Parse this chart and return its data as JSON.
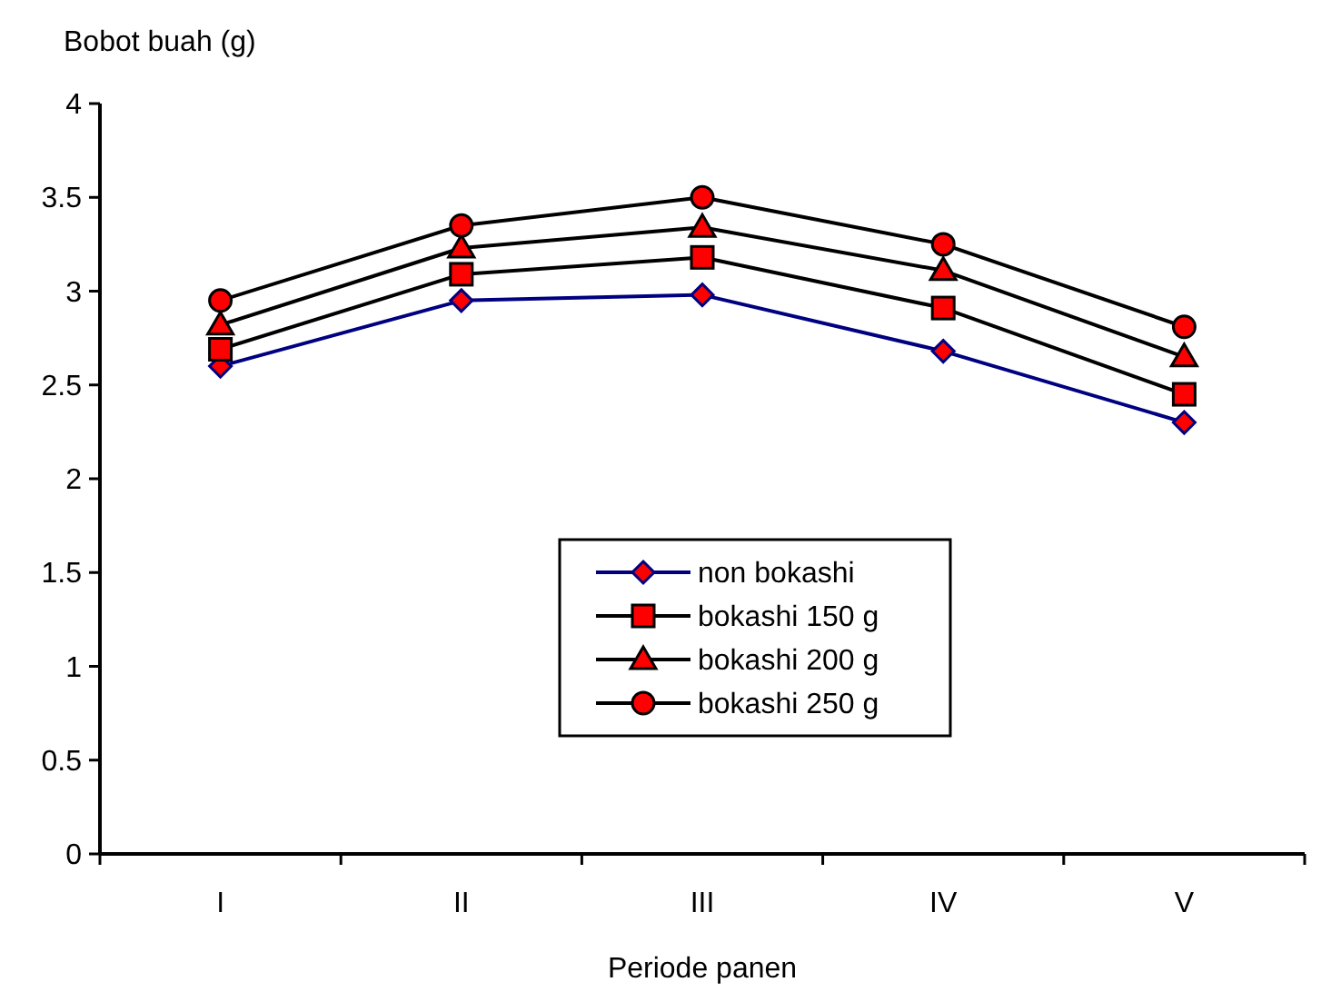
{
  "chart_data": {
    "type": "line",
    "ylabel": "Bobot buah (g)",
    "xlabel": "Periode panen",
    "categories": [
      "I",
      "II",
      "III",
      "IV",
      "V"
    ],
    "series": [
      {
        "name": "non bokashi",
        "color": "#000080",
        "marker": "diamond",
        "values": [
          2.6,
          2.95,
          2.98,
          2.68,
          2.3
        ]
      },
      {
        "name": "bokashi 150 g",
        "color": "#000000",
        "marker": "square",
        "values": [
          2.69,
          3.09,
          3.18,
          2.91,
          2.45
        ]
      },
      {
        "name": "bokashi 200 g",
        "color": "#000000",
        "marker": "triangle",
        "values": [
          2.82,
          3.23,
          3.34,
          3.11,
          2.65
        ]
      },
      {
        "name": "bokashi 250 g",
        "color": "#000000",
        "marker": "circle",
        "values": [
          2.95,
          3.35,
          3.5,
          3.25,
          2.81
        ]
      }
    ],
    "ylim": [
      0,
      4
    ],
    "yticks": [
      0,
      0.5,
      1,
      1.5,
      2,
      2.5,
      3,
      3.5,
      4
    ],
    "grid": false,
    "legend": "bottom",
    "line_style": "solid"
  }
}
